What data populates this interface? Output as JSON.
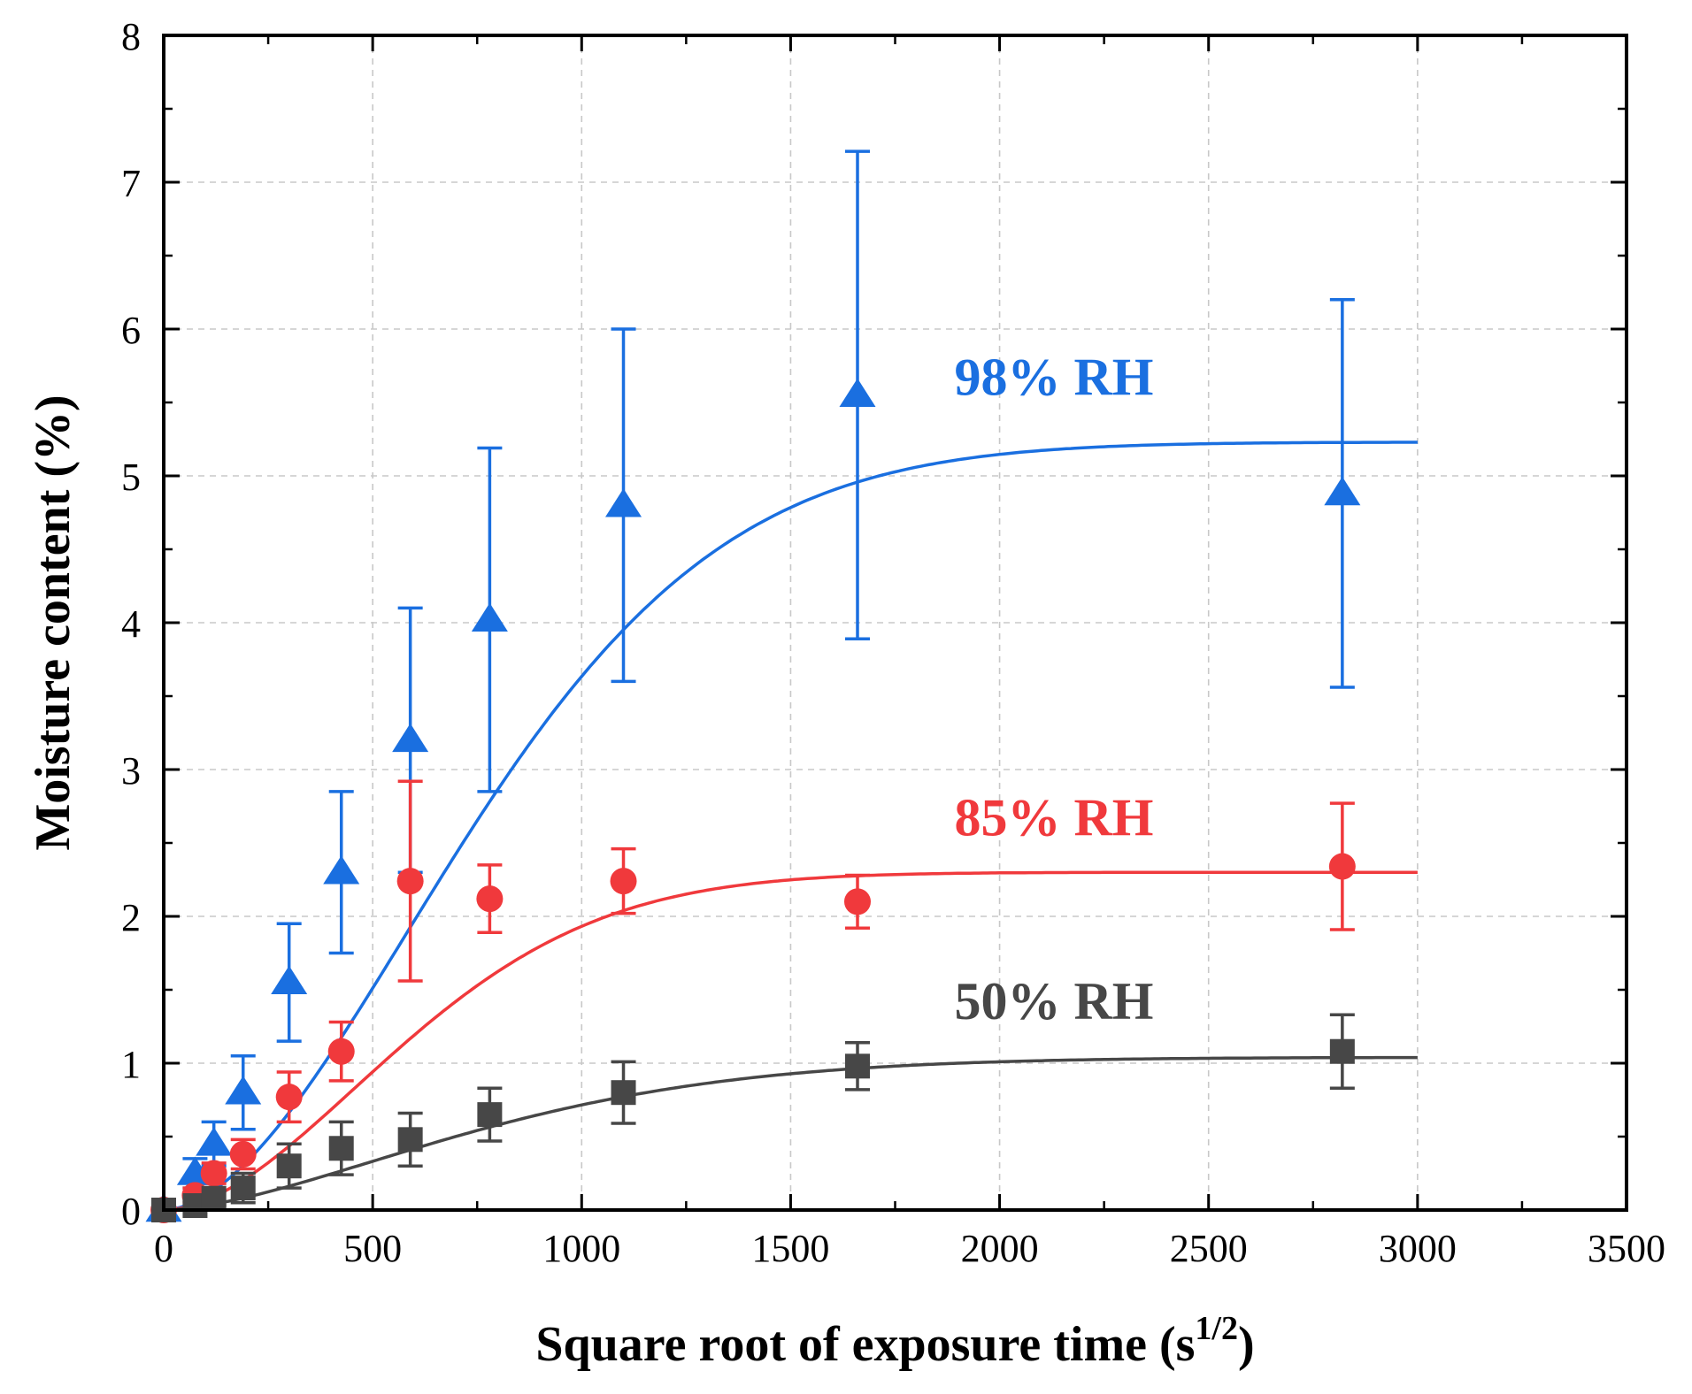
{
  "chart_data": {
    "type": "scatter",
    "title": "",
    "xlabel": "Square root of exposure time (s",
    "xlabel_sup": "1/2",
    "xlabel_end": ")",
    "ylabel": "Moisture content (%)",
    "xlim": [
      0,
      3500
    ],
    "ylim": [
      0,
      8
    ],
    "xticks": [
      0,
      500,
      1000,
      1500,
      2000,
      2500,
      3000,
      3500
    ],
    "yticks": [
      0,
      1,
      2,
      3,
      4,
      5,
      6,
      7,
      8
    ],
    "grid": true,
    "legend": "none",
    "series": [
      {
        "name": "98% RH",
        "color": "#1a6fe0",
        "marker": "triangle",
        "points": [
          {
            "x": 0,
            "y": 0.0,
            "err": 0.0
          },
          {
            "x": 75,
            "y": 0.25,
            "err": 0.1
          },
          {
            "x": 120,
            "y": 0.45,
            "err": 0.15
          },
          {
            "x": 190,
            "y": 0.8,
            "err": 0.25
          },
          {
            "x": 300,
            "y": 1.55,
            "err": 0.4
          },
          {
            "x": 425,
            "y": 2.3,
            "err": 0.55
          },
          {
            "x": 590,
            "y": 3.2,
            "err": 0.9
          },
          {
            "x": 780,
            "y": 4.02,
            "err": 1.17
          },
          {
            "x": 1100,
            "y": 4.8,
            "err": 1.2
          },
          {
            "x": 1660,
            "y": 5.55,
            "err": 1.66
          },
          {
            "x": 2820,
            "y": 4.88,
            "err": 1.32
          }
        ],
        "fit": {
          "amp": 5.23,
          "k": 0.0011,
          "n": 1.8
        }
      },
      {
        "name": "85% RH",
        "color": "#f0393c",
        "marker": "circle",
        "points": [
          {
            "x": 0,
            "y": 0.0,
            "err": 0.0
          },
          {
            "x": 75,
            "y": 0.1,
            "err": 0.05
          },
          {
            "x": 120,
            "y": 0.25,
            "err": 0.07
          },
          {
            "x": 190,
            "y": 0.38,
            "err": 0.1
          },
          {
            "x": 300,
            "y": 0.77,
            "err": 0.17
          },
          {
            "x": 425,
            "y": 1.08,
            "err": 0.2
          },
          {
            "x": 590,
            "y": 2.24,
            "err": 0.68
          },
          {
            "x": 780,
            "y": 2.12,
            "err": 0.23
          },
          {
            "x": 1100,
            "y": 2.24,
            "err": 0.22
          },
          {
            "x": 1660,
            "y": 2.1,
            "err": 0.18
          },
          {
            "x": 2820,
            "y": 2.34,
            "err": 0.43
          }
        ],
        "fit": {
          "amp": 2.3,
          "k": 0.0014,
          "n": 1.8
        }
      },
      {
        "name": "50% RH",
        "color": "#474747",
        "marker": "square",
        "points": [
          {
            "x": 0,
            "y": 0.0,
            "err": 0.0
          },
          {
            "x": 75,
            "y": 0.03,
            "err": 0.03
          },
          {
            "x": 120,
            "y": 0.08,
            "err": 0.05
          },
          {
            "x": 190,
            "y": 0.15,
            "err": 0.1
          },
          {
            "x": 300,
            "y": 0.3,
            "err": 0.15
          },
          {
            "x": 425,
            "y": 0.42,
            "err": 0.18
          },
          {
            "x": 590,
            "y": 0.48,
            "err": 0.18
          },
          {
            "x": 780,
            "y": 0.65,
            "err": 0.18
          },
          {
            "x": 1100,
            "y": 0.8,
            "err": 0.21
          },
          {
            "x": 1660,
            "y": 0.98,
            "err": 0.16
          },
          {
            "x": 2820,
            "y": 1.08,
            "err": 0.25
          }
        ],
        "fit": {
          "amp": 1.04,
          "k": 0.0011,
          "n": 1.6
        }
      }
    ],
    "annotations": [
      {
        "text": "98% RH",
        "x": 2130,
        "y": 5.55,
        "color": "#1a6fe0"
      },
      {
        "text": "85% RH",
        "x": 2130,
        "y": 2.55,
        "color": "#f0393c"
      },
      {
        "text": "50% RH",
        "x": 2130,
        "y": 1.3,
        "color": "#474747"
      }
    ]
  }
}
